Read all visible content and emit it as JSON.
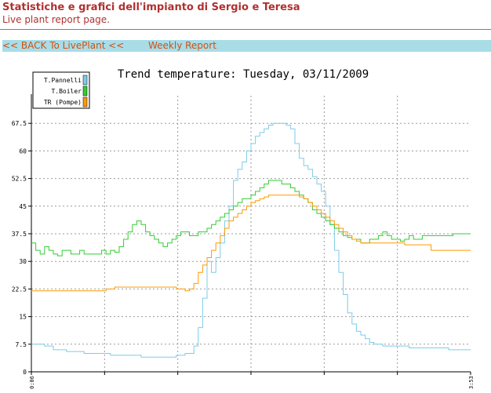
{
  "header": {
    "title": "Statistiche e grafici dell'impianto di Sergio e Teresa",
    "subtitle": "Live plant report page."
  },
  "nav": {
    "back_label": "<< BACK To LivePlant <<",
    "weekly_label": "Weekly Report"
  },
  "chart_data": {
    "type": "line",
    "title": "Trend temperature: Tuesday, 03/11/2009",
    "xlabel": "",
    "ylabel": "",
    "x_ticks": [
      "0:06",
      "3:53"
    ],
    "ylim": [
      0,
      75
    ],
    "y_ticks": [
      "0",
      "7.5",
      "15",
      "22.5",
      "30",
      "37.5",
      "45",
      "52.5",
      "60",
      "67.5"
    ],
    "grid": true,
    "legend_position": "top-left",
    "series": [
      {
        "name": "T.Pannelli",
        "color": "#7ecbe8",
        "points": [
          [
            0,
            7.5
          ],
          [
            3,
            7
          ],
          [
            5,
            6
          ],
          [
            8,
            5.5
          ],
          [
            12,
            5
          ],
          [
            18,
            4.5
          ],
          [
            25,
            4
          ],
          [
            30,
            4
          ],
          [
            33,
            4.5
          ],
          [
            35,
            5
          ],
          [
            37,
            7
          ],
          [
            38,
            12
          ],
          [
            39,
            20
          ],
          [
            40,
            30
          ],
          [
            41,
            27
          ],
          [
            42,
            31
          ],
          [
            43,
            35
          ],
          [
            44,
            41
          ],
          [
            45,
            45
          ],
          [
            46,
            52
          ],
          [
            47,
            55
          ],
          [
            48,
            57
          ],
          [
            49,
            60
          ],
          [
            50,
            62
          ],
          [
            51,
            64
          ],
          [
            52,
            65
          ],
          [
            53,
            66
          ],
          [
            54,
            67
          ],
          [
            55,
            67.5
          ],
          [
            56,
            67.5
          ],
          [
            57,
            67.5
          ],
          [
            58,
            67
          ],
          [
            59,
            66
          ],
          [
            60,
            62
          ],
          [
            61,
            58
          ],
          [
            62,
            56
          ],
          [
            63,
            55
          ],
          [
            64,
            53
          ],
          [
            65,
            51
          ],
          [
            66,
            49
          ],
          [
            67,
            45
          ],
          [
            68,
            40
          ],
          [
            69,
            33
          ],
          [
            70,
            27
          ],
          [
            71,
            21
          ],
          [
            72,
            16
          ],
          [
            73,
            13
          ],
          [
            74,
            11
          ],
          [
            75,
            10
          ],
          [
            76,
            9
          ],
          [
            77,
            8
          ],
          [
            78,
            7.5
          ],
          [
            80,
            7
          ],
          [
            83,
            7
          ],
          [
            86,
            6.5
          ],
          [
            90,
            6.5
          ],
          [
            95,
            6
          ],
          [
            100,
            6
          ]
        ]
      },
      {
        "name": "T.Boiler",
        "color": "#33cc33",
        "points": [
          [
            0,
            35
          ],
          [
            1,
            33
          ],
          [
            2,
            32
          ],
          [
            3,
            34
          ],
          [
            4,
            33
          ],
          [
            5,
            32
          ],
          [
            6,
            31.5
          ],
          [
            7,
            33
          ],
          [
            8,
            33
          ],
          [
            9,
            32
          ],
          [
            10,
            32
          ],
          [
            11,
            33
          ],
          [
            12,
            32
          ],
          [
            14,
            32
          ],
          [
            16,
            33
          ],
          [
            17,
            32
          ],
          [
            18,
            33
          ],
          [
            19,
            32.5
          ],
          [
            20,
            34
          ],
          [
            21,
            36
          ],
          [
            22,
            38
          ],
          [
            23,
            40
          ],
          [
            24,
            41
          ],
          [
            25,
            40
          ],
          [
            26,
            38
          ],
          [
            27,
            37
          ],
          [
            28,
            36
          ],
          [
            29,
            35
          ],
          [
            30,
            34
          ],
          [
            31,
            35
          ],
          [
            32,
            36
          ],
          [
            33,
            37
          ],
          [
            34,
            38
          ],
          [
            35,
            38
          ],
          [
            36,
            37
          ],
          [
            37,
            37
          ],
          [
            38,
            38
          ],
          [
            39,
            38
          ],
          [
            40,
            39
          ],
          [
            41,
            40
          ],
          [
            42,
            41
          ],
          [
            43,
            42
          ],
          [
            44,
            43
          ],
          [
            45,
            44
          ],
          [
            46,
            45
          ],
          [
            47,
            46
          ],
          [
            48,
            47
          ],
          [
            49,
            47
          ],
          [
            50,
            48
          ],
          [
            51,
            49
          ],
          [
            52,
            50
          ],
          [
            53,
            51
          ],
          [
            54,
            52
          ],
          [
            55,
            52
          ],
          [
            56,
            52
          ],
          [
            57,
            51
          ],
          [
            58,
            51
          ],
          [
            59,
            50
          ],
          [
            60,
            49
          ],
          [
            61,
            48
          ],
          [
            62,
            47
          ],
          [
            63,
            46
          ],
          [
            64,
            44
          ],
          [
            65,
            43
          ],
          [
            66,
            42
          ],
          [
            67,
            41
          ],
          [
            68,
            40
          ],
          [
            69,
            39
          ],
          [
            70,
            38
          ],
          [
            71,
            37
          ],
          [
            72,
            36.5
          ],
          [
            73,
            36
          ],
          [
            74,
            36
          ],
          [
            75,
            35
          ],
          [
            76,
            35
          ],
          [
            77,
            36
          ],
          [
            78,
            36
          ],
          [
            79,
            37
          ],
          [
            80,
            38
          ],
          [
            81,
            37
          ],
          [
            82,
            36
          ],
          [
            83,
            36
          ],
          [
            84,
            35.5
          ],
          [
            85,
            36
          ],
          [
            86,
            37
          ],
          [
            87,
            36
          ],
          [
            88,
            36
          ],
          [
            89,
            37
          ],
          [
            90,
            37
          ],
          [
            93,
            37
          ],
          [
            96,
            37.5
          ],
          [
            100,
            37.5
          ]
        ]
      },
      {
        "name": "TR (Pompe)",
        "color": "#ff9900",
        "points": [
          [
            0,
            22
          ],
          [
            10,
            22
          ],
          [
            17,
            22.5
          ],
          [
            19,
            23
          ],
          [
            30,
            23
          ],
          [
            33,
            22.5
          ],
          [
            35,
            22
          ],
          [
            36,
            22.5
          ],
          [
            37,
            24
          ],
          [
            38,
            27
          ],
          [
            39,
            29
          ],
          [
            40,
            31
          ],
          [
            41,
            33
          ],
          [
            42,
            35
          ],
          [
            43,
            37
          ],
          [
            44,
            39
          ],
          [
            45,
            41
          ],
          [
            46,
            42
          ],
          [
            47,
            43
          ],
          [
            48,
            44
          ],
          [
            49,
            45
          ],
          [
            50,
            46
          ],
          [
            51,
            46.5
          ],
          [
            52,
            47
          ],
          [
            53,
            47.5
          ],
          [
            54,
            48
          ],
          [
            55,
            48
          ],
          [
            60,
            48
          ],
          [
            61,
            47.5
          ],
          [
            62,
            47
          ],
          [
            63,
            46
          ],
          [
            64,
            45
          ],
          [
            65,
            44
          ],
          [
            66,
            43
          ],
          [
            67,
            42
          ],
          [
            68,
            41
          ],
          [
            69,
            40
          ],
          [
            70,
            39
          ],
          [
            71,
            38
          ],
          [
            72,
            37
          ],
          [
            73,
            36
          ],
          [
            74,
            35.5
          ],
          [
            75,
            35
          ],
          [
            80,
            35
          ],
          [
            84,
            35
          ],
          [
            85,
            34.5
          ],
          [
            90,
            34.5
          ],
          [
            91,
            33
          ],
          [
            100,
            33
          ]
        ]
      }
    ]
  }
}
